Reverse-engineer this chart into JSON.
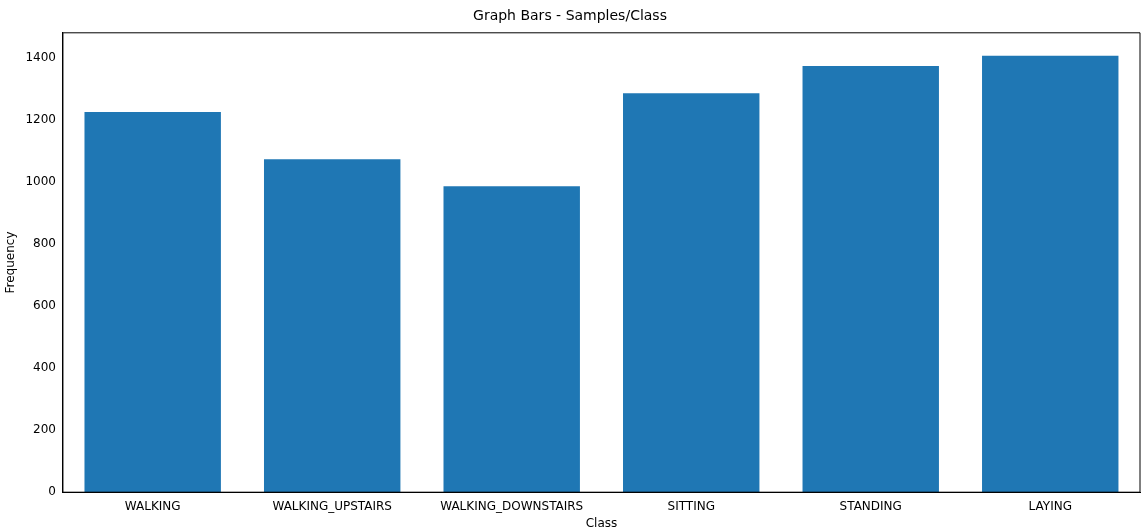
{
  "chart_data": {
    "type": "bar",
    "title": "Graph Bars - Samples/Class",
    "xlabel": "Class",
    "ylabel": "Frequency",
    "categories": [
      "WALKING",
      "WALKING_UPSTAIRS",
      "WALKING_DOWNSTAIRS",
      "SITTING",
      "STANDING",
      "LAYING"
    ],
    "values": [
      1226,
      1073,
      986,
      1286,
      1374,
      1407
    ],
    "color": "#1f77b4",
    "ylim": [
      0,
      1481
    ],
    "yticks": [
      0,
      200,
      400,
      600,
      800,
      1000,
      1200,
      1400
    ],
    "grid": false,
    "legend": false
  }
}
